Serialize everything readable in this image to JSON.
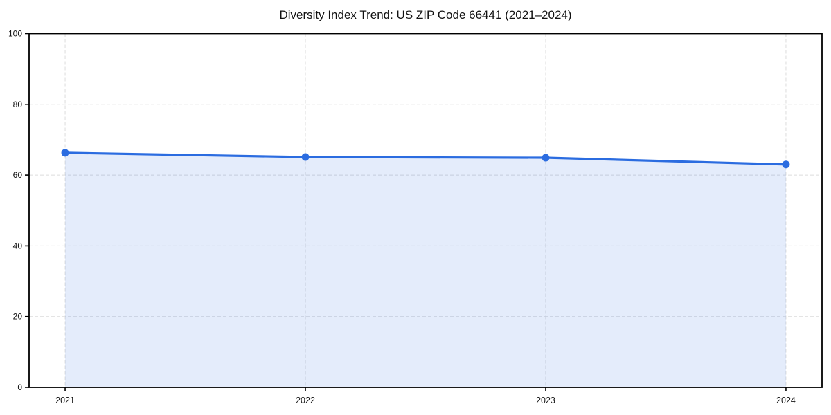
{
  "chart_data": {
    "type": "area",
    "title": "Diversity Index Trend: US ZIP Code 66441 (2021–2024)",
    "categories": [
      "2021",
      "2022",
      "2023",
      "2024"
    ],
    "x": [
      2021,
      2022,
      2023,
      2024
    ],
    "series": [
      {
        "name": "Diversity Index",
        "values": [
          66.3,
          65.1,
          64.9,
          63.0
        ]
      }
    ],
    "xlabel": "",
    "ylabel": "",
    "ylim": [
      0,
      100
    ],
    "yticks": [
      0,
      20,
      40,
      60,
      80,
      100
    ],
    "x_margin": 0.15,
    "grid": true,
    "grid_style": "dashed",
    "legend": "none",
    "colors": {
      "line": "#2b6ce0",
      "marker": "#2b6ce0",
      "area_opacity": 0.13,
      "grid": "#dcdcdc",
      "spine": "#000000",
      "tick_text": "#151515"
    },
    "marker_radius": 5.5,
    "line_width": 3.2
  }
}
